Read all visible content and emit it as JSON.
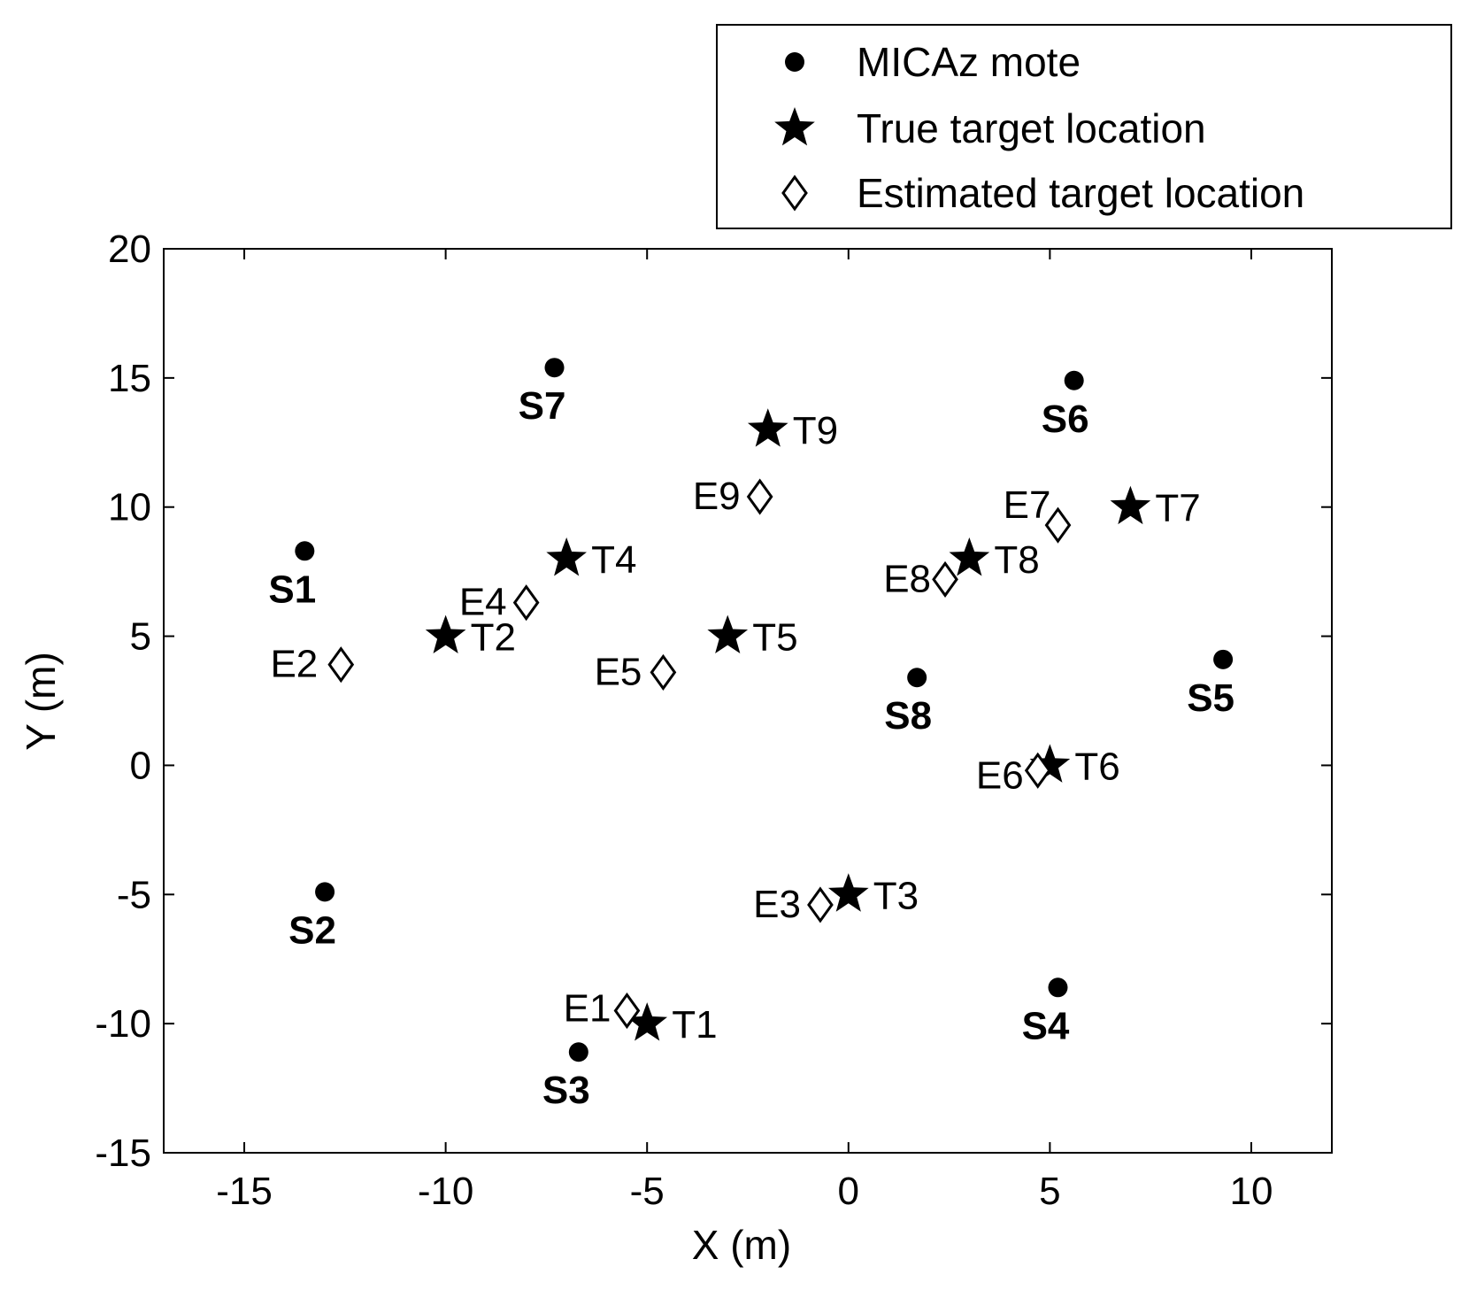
{
  "chart_data": {
    "type": "scatter",
    "title": "",
    "xlabel": "X (m)",
    "ylabel": "Y (m)",
    "xlim": [
      -17,
      12
    ],
    "ylim": [
      -15,
      20
    ],
    "xticks": [
      "-15",
      "-10",
      "-5",
      "0",
      "5",
      "10"
    ],
    "yticks": [
      "20",
      "15",
      "10",
      "5",
      "0",
      "-5",
      "-10",
      "-15"
    ],
    "legend": {
      "position": "top-right",
      "entries": [
        {
          "marker": "circle",
          "label": "MICAz mote"
        },
        {
          "marker": "star",
          "label": "True target location"
        },
        {
          "marker": "diamond",
          "label": "Estimated target location"
        }
      ]
    },
    "series": [
      {
        "name": "MICAz mote",
        "marker": "circle",
        "points": [
          {
            "label": "S1",
            "x": -13.5,
            "y": 8.3
          },
          {
            "label": "S2",
            "x": -13.0,
            "y": -4.9
          },
          {
            "label": "S3",
            "x": -6.7,
            "y": -11.1
          },
          {
            "label": "S4",
            "x": 5.2,
            "y": -8.6
          },
          {
            "label": "S5",
            "x": 9.3,
            "y": 4.1
          },
          {
            "label": "S6",
            "x": 5.6,
            "y": 14.9
          },
          {
            "label": "S7",
            "x": -7.3,
            "y": 15.4
          },
          {
            "label": "S8",
            "x": 1.7,
            "y": 3.4
          }
        ]
      },
      {
        "name": "True target location",
        "marker": "star",
        "points": [
          {
            "label": "T1",
            "x": -5.0,
            "y": -10.0
          },
          {
            "label": "T2",
            "x": -10.0,
            "y": 5.0
          },
          {
            "label": "T3",
            "x": 0.0,
            "y": -5.0
          },
          {
            "label": "T4",
            "x": -7.0,
            "y": 8.0
          },
          {
            "label": "T5",
            "x": -3.0,
            "y": 5.0
          },
          {
            "label": "T6",
            "x": 5.0,
            "y": 0.0
          },
          {
            "label": "T7",
            "x": 7.0,
            "y": 10.0
          },
          {
            "label": "T8",
            "x": 3.0,
            "y": 8.0
          },
          {
            "label": "T9",
            "x": -2.0,
            "y": 13.0
          }
        ]
      },
      {
        "name": "Estimated target location",
        "marker": "diamond",
        "points": [
          {
            "label": "E1",
            "x": -5.5,
            "y": -9.5
          },
          {
            "label": "E2",
            "x": -12.6,
            "y": 3.9
          },
          {
            "label": "E3",
            "x": -0.7,
            "y": -5.4
          },
          {
            "label": "E4",
            "x": -8.0,
            "y": 6.3
          },
          {
            "label": "E5",
            "x": -4.6,
            "y": 3.6
          },
          {
            "label": "E6",
            "x": 4.7,
            "y": -0.2
          },
          {
            "label": "E7",
            "x": 5.2,
            "y": 9.3
          },
          {
            "label": "E8",
            "x": 2.4,
            "y": 7.2
          },
          {
            "label": "E9",
            "x": -2.2,
            "y": 10.4
          }
        ]
      }
    ]
  }
}
